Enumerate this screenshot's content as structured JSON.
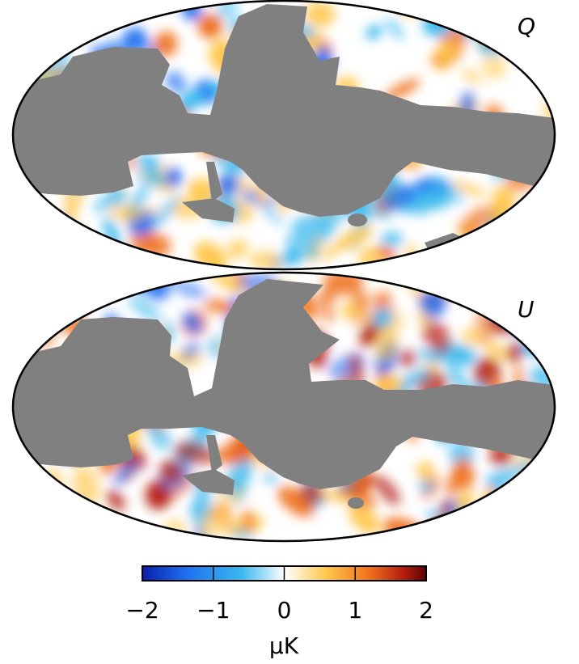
{
  "maps": [
    {
      "stokes_label": "Q"
    },
    {
      "stokes_label": "U"
    }
  ],
  "colorbar": {
    "min": -2,
    "max": 2,
    "ticks": [
      -2,
      -1,
      0,
      1,
      2
    ],
    "tick_labels": [
      "−2",
      "−1",
      "0",
      "1",
      "2"
    ],
    "unit": "μK",
    "colors": [
      "#0a1ea8",
      "#1e6ef0",
      "#39b9ee",
      "#ffffff",
      "#ffc64a",
      "#f0711c",
      "#b51d0e",
      "#5a0505"
    ]
  },
  "mask_color": "#808080"
}
